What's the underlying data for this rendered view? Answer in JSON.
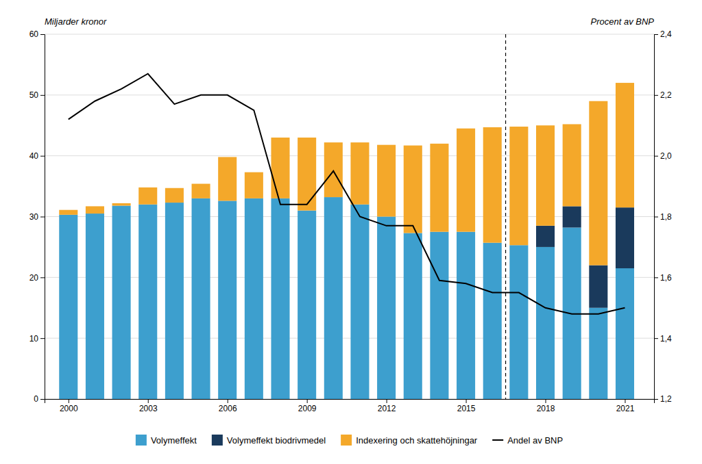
{
  "chart_data": {
    "type": "bar",
    "stacked": true,
    "grid": true,
    "legend": "bottom",
    "ylabel": "Miljarder kronor",
    "y2label": "Procent av BNP",
    "x": [
      2000,
      2001,
      2002,
      2003,
      2004,
      2005,
      2006,
      2007,
      2008,
      2009,
      2010,
      2011,
      2012,
      2013,
      2014,
      2015,
      2016,
      2017,
      2018,
      2019,
      2020,
      2021
    ],
    "xlim": [
      1999.1,
      2022.1
    ],
    "xticks": [
      2000,
      2003,
      2006,
      2009,
      2012,
      2015,
      2018,
      2021
    ],
    "ylim": [
      0,
      60
    ],
    "yticks": [
      0,
      10,
      20,
      30,
      40,
      50,
      60
    ],
    "y2lim": [
      1.2,
      2.4
    ],
    "y2ticks": [
      {
        "value": 1.2,
        "label": "1,2"
      },
      {
        "value": 1.4,
        "label": "1,4"
      },
      {
        "value": 1.6,
        "label": "1,6"
      },
      {
        "value": 1.8,
        "label": "1,8"
      },
      {
        "value": 2.0,
        "label": "2,0"
      },
      {
        "value": 2.2,
        "label": "2,2"
      },
      {
        "value": 2.4,
        "label": "2,4"
      }
    ],
    "vline_x": 2016.5,
    "series": [
      {
        "name": "Volymeffekt",
        "type": "bar",
        "color": "#3d9fce",
        "values": [
          30.3,
          30.5,
          31.8,
          32.0,
          32.3,
          33.0,
          32.6,
          33.0,
          33.0,
          31.0,
          33.2,
          32.0,
          30.0,
          27.3,
          27.5,
          27.5,
          25.7,
          25.3,
          25.0,
          28.2,
          15.0,
          21.5
        ]
      },
      {
        "name": "Volymeffekt biodrivmedel",
        "type": "bar",
        "color": "#1a3a5c",
        "values": [
          0,
          0,
          0,
          0,
          0,
          0,
          0,
          0,
          0,
          0,
          0,
          0,
          0,
          0,
          0,
          0,
          0,
          0,
          3.5,
          3.5,
          7.0,
          10.0
        ]
      },
      {
        "name": "Indexering och skattehöjningar",
        "type": "bar",
        "color": "#f4a82a",
        "values": [
          0.8,
          1.2,
          0.4,
          2.8,
          2.4,
          2.4,
          7.2,
          4.3,
          10.0,
          12.0,
          9.0,
          10.2,
          11.8,
          14.4,
          14.5,
          17.0,
          19.0,
          19.5,
          16.5,
          13.5,
          27.0,
          20.5
        ]
      },
      {
        "name": "Andel av BNP",
        "type": "line",
        "axis": "y2",
        "color": "#000000",
        "values": [
          2.12,
          2.18,
          2.22,
          2.27,
          2.17,
          2.2,
          2.2,
          2.15,
          1.84,
          1.84,
          1.95,
          1.8,
          1.77,
          1.77,
          1.59,
          1.58,
          1.55,
          1.55,
          1.5,
          1.48,
          1.48,
          1.5
        ]
      }
    ]
  }
}
